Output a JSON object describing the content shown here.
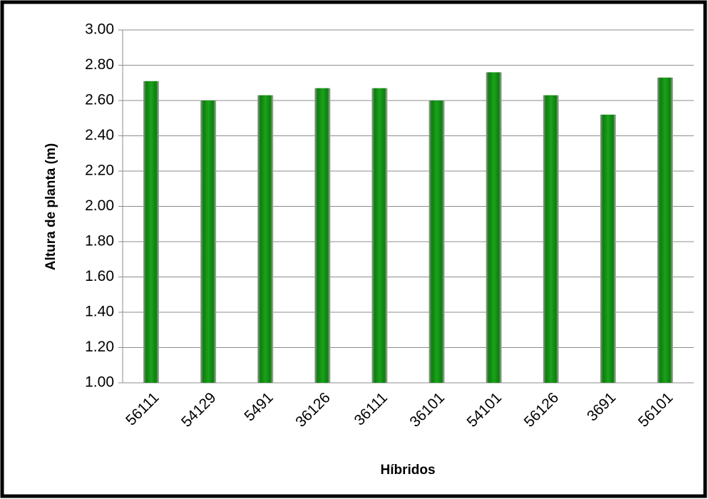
{
  "chart_data": {
    "type": "bar",
    "x_label": "Híbridos",
    "y_label": "Altura de planta (m)",
    "categories": [
      "56111",
      "54129",
      "5491",
      "36126",
      "36111",
      "36101",
      "54101",
      "56126",
      "3691",
      "56101"
    ],
    "values": [
      2.71,
      2.6,
      2.63,
      2.67,
      2.67,
      2.6,
      2.76,
      2.63,
      2.52,
      2.73
    ],
    "color": "#1aa31a",
    "ylim": [
      1,
      3
    ],
    "yticks": [
      {
        "value": 1,
        "label": "1.00"
      },
      {
        "value": 1.2,
        "label": "1.20"
      },
      {
        "value": 1.4,
        "label": "1.40"
      },
      {
        "value": 1.6,
        "label": "1.60"
      },
      {
        "value": 1.8,
        "label": "1.80"
      },
      {
        "value": 2,
        "label": "2.00"
      },
      {
        "value": 2.2,
        "label": "2.20"
      },
      {
        "value": 2.4,
        "label": "2.40"
      },
      {
        "value": 2.6,
        "label": "2.60"
      },
      {
        "value": 2.8,
        "label": "2.80"
      },
      {
        "value": 3,
        "label": "3.00"
      }
    ],
    "grid": true
  }
}
